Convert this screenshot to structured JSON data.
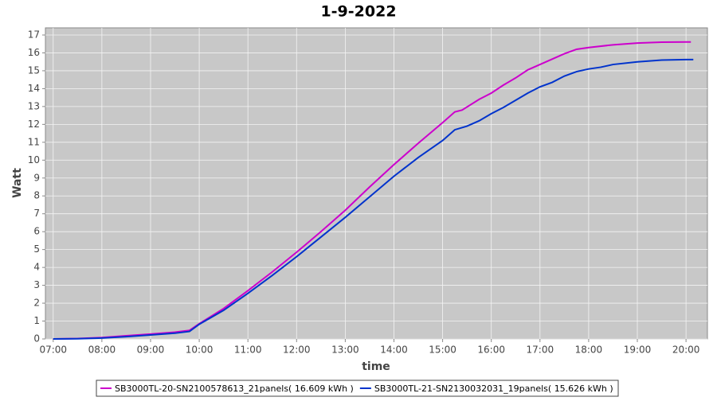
{
  "chart_data": {
    "type": "line",
    "title": "1-9-2022",
    "x_label": "time",
    "y_label": "Watt",
    "xlim": [
      6.84,
      20.44
    ],
    "ylim": [
      0,
      17.4
    ],
    "xticks": [
      {
        "value": 7,
        "label": "07:00"
      },
      {
        "value": 8,
        "label": "08:00"
      },
      {
        "value": 9,
        "label": "09:00"
      },
      {
        "value": 10,
        "label": "10:00"
      },
      {
        "value": 11,
        "label": "11:00"
      },
      {
        "value": 12,
        "label": "12:00"
      },
      {
        "value": 13,
        "label": "13:00"
      },
      {
        "value": 14,
        "label": "14:00"
      },
      {
        "value": 15,
        "label": "15:00"
      },
      {
        "value": 16,
        "label": "16:00"
      },
      {
        "value": 17,
        "label": "17:00"
      },
      {
        "value": 18,
        "label": "18:00"
      },
      {
        "value": 19,
        "label": "19:00"
      },
      {
        "value": 20,
        "label": "20:00"
      }
    ],
    "yticks": [
      0,
      1,
      2,
      3,
      4,
      5,
      6,
      7,
      8,
      9,
      10,
      11,
      12,
      13,
      14,
      15,
      16,
      17
    ],
    "grid": true,
    "series": [
      {
        "name": "SB3000TL-20-SN2100578613_21panels( 16.609 kWh )",
        "color": "#cc00cc",
        "x": [
          7,
          7.5,
          8,
          8.5,
          9,
          9.5,
          9.8,
          10,
          10.5,
          11,
          11.5,
          12,
          12.5,
          13,
          13.5,
          14,
          14.5,
          15,
          15.25,
          15.4,
          15.75,
          16,
          16.25,
          16.5,
          16.75,
          17,
          17.25,
          17.5,
          17.75,
          18,
          18.5,
          19,
          19.5,
          20,
          20.1
        ],
        "values": [
          0,
          0.02,
          0.08,
          0.18,
          0.27,
          0.38,
          0.48,
          0.85,
          1.7,
          2.7,
          3.75,
          4.85,
          6.0,
          7.2,
          8.5,
          9.75,
          10.95,
          12.1,
          12.7,
          12.8,
          13.4,
          13.75,
          14.2,
          14.6,
          15.05,
          15.35,
          15.65,
          15.95,
          16.2,
          16.3,
          16.45,
          16.55,
          16.6,
          16.609,
          16.609
        ]
      },
      {
        "name": "SB3000TL-21-SN2130032031_19panels( 15.626 kWh )",
        "color": "#0033cc",
        "x": [
          7,
          7.5,
          8,
          8.5,
          9,
          9.5,
          9.8,
          10,
          10.5,
          11,
          11.5,
          12,
          12.5,
          13,
          13.5,
          14,
          14.5,
          15,
          15.25,
          15.5,
          15.75,
          16,
          16.25,
          16.5,
          16.75,
          17,
          17.25,
          17.5,
          17.75,
          18,
          18.25,
          18.5,
          19,
          19.5,
          20,
          20.15
        ],
        "values": [
          0,
          0.01,
          0.05,
          0.13,
          0.22,
          0.32,
          0.42,
          0.82,
          1.6,
          2.55,
          3.55,
          4.6,
          5.7,
          6.8,
          7.95,
          9.1,
          10.15,
          11.1,
          11.7,
          11.9,
          12.2,
          12.6,
          12.95,
          13.35,
          13.75,
          14.1,
          14.35,
          14.7,
          14.95,
          15.1,
          15.2,
          15.35,
          15.5,
          15.6,
          15.626,
          15.626
        ]
      }
    ]
  }
}
